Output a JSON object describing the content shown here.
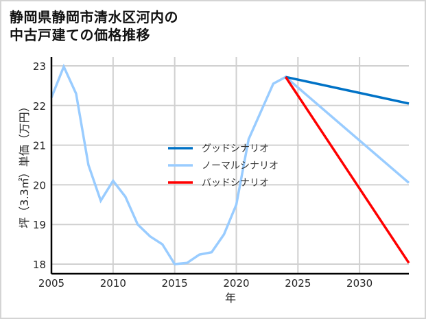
{
  "title": {
    "line1": "静岡県静岡市清水区河内の",
    "line2": "中古戸建ての価格推移"
  },
  "chart_data": {
    "type": "line",
    "title": "静岡県静岡市清水区河内の中古戸建ての価格推移",
    "xlabel": "年",
    "ylabel": "坪（3.3㎡）単価（万円）",
    "xlim": [
      2005,
      2034
    ],
    "ylim": [
      17.8,
      23.25
    ],
    "x_ticks": [
      2005,
      2010,
      2015,
      2020,
      2025,
      2030
    ],
    "y_ticks": [
      18,
      19,
      20,
      21,
      22,
      23
    ],
    "grid": true,
    "legend_position": "center",
    "series": [
      {
        "name": "グッドシナリオ",
        "color": "#0072c6",
        "x": [
          2024,
          2034
        ],
        "values": [
          22.72,
          22.05
        ]
      },
      {
        "name": "ノーマルシナリオ",
        "color": "#99ccff",
        "x": [
          2005,
          2006,
          2007,
          2008,
          2009,
          2010,
          2011,
          2012,
          2013,
          2014,
          2015,
          2016,
          2017,
          2018,
          2019,
          2020,
          2021,
          2022,
          2023,
          2024,
          2034
        ],
        "values": [
          22.2,
          22.98,
          22.3,
          20.5,
          19.6,
          20.1,
          19.7,
          19.0,
          18.7,
          18.5,
          18.0,
          18.03,
          18.24,
          18.3,
          18.75,
          19.5,
          21.15,
          21.85,
          22.55,
          22.72,
          20.05
        ]
      },
      {
        "name": "バッドシナリオ",
        "color": "#ff0000",
        "x": [
          2024,
          2034
        ],
        "values": [
          22.72,
          18.03
        ]
      }
    ]
  },
  "legend": [
    {
      "label": "グッドシナリオ",
      "color": "#0072c6"
    },
    {
      "label": "ノーマルシナリオ",
      "color": "#99ccff"
    },
    {
      "label": "バッドシナリオ",
      "color": "#ff0000"
    }
  ]
}
